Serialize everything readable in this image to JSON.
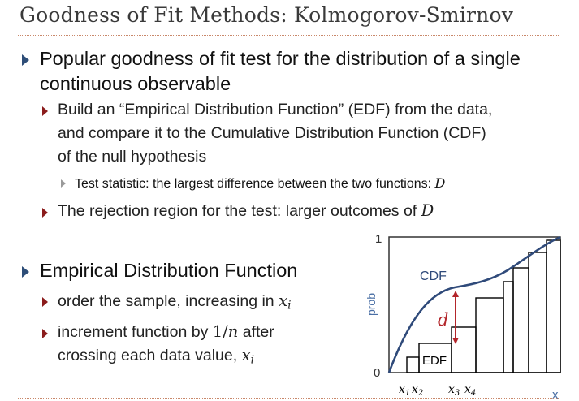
{
  "slide": {
    "title": "Goodness of Fit Methods: Kolmogorov-Smirnov"
  },
  "bullets": {
    "b1_line1": "Popular goodness of fit test for the distribution of a single",
    "b1_line2": "continuous observable",
    "b1a_line1": "Build an “Empirical Distribution Function” (EDF) from the data,",
    "b1a_line2": "and compare it to the Cumulative Distribution Function (CDF)",
    "b1a_line3": "of the null hypothesis",
    "b1a_i_text": "Test statistic: the largest difference between the two functions: ",
    "b1a_i_var": "D",
    "b1b_text": "The rejection region for the test: larger outcomes of ",
    "b1b_var": "D",
    "b2_text": "Empirical Distribution Function",
    "b2a_text": "order the sample, increasing in ",
    "b2a_var": "x",
    "b2a_sub": "i",
    "b2b_line1_pre": "increment function by ",
    "b2b_line1_frac": "1/",
    "b2b_line1_var": "n",
    "b2b_line1_post": " after",
    "b2b_line2_pre": "crossing each data value, ",
    "b2b_line2_var": "x",
    "b2b_line2_sub": "i"
  },
  "figure": {
    "y_label": "prob",
    "x_label": "x",
    "y_top_tick": "1",
    "y_bottom_tick": "0",
    "cdf_label": "CDF",
    "edf_label": "EDF",
    "d_label": "d",
    "x_ticks": [
      {
        "var": "x",
        "sub": "1"
      },
      {
        "var": "x",
        "sub": "2"
      },
      {
        "var": "x",
        "sub": "3"
      },
      {
        "var": "x",
        "sub": "4"
      }
    ],
    "colors": {
      "frame": "#333333",
      "cdf": "#2f4a7a",
      "edf": "#000000",
      "d_arrow": "#b3262b",
      "axis_text": "#4a6fa5"
    }
  }
}
